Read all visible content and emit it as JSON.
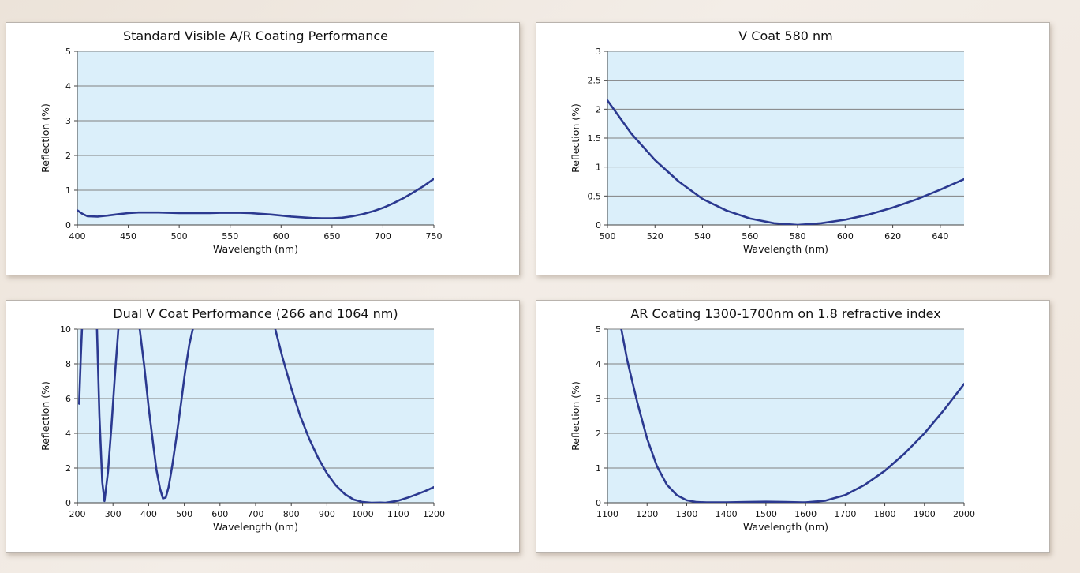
{
  "chart_data": [
    {
      "type": "line",
      "title": "Standard Visible A/R Coating Performance",
      "xlabel": "Wavelength (nm)",
      "ylabel": "Reflection (%)",
      "xlim": [
        400,
        750
      ],
      "ylim": [
        0,
        5
      ],
      "xticks": [
        "400",
        "450",
        "500",
        "550",
        "600",
        "650",
        "700",
        "750"
      ],
      "yticks": [
        "0",
        "1",
        "2",
        "3",
        "4",
        "5"
      ],
      "grid": true,
      "plot_color": "#dbeffa",
      "line_color": "#2b3990",
      "series": [
        {
          "x": [
            400,
            405,
            410,
            420,
            430,
            440,
            450,
            460,
            470,
            480,
            490,
            500,
            510,
            520,
            530,
            540,
            550,
            560,
            570,
            580,
            590,
            600,
            610,
            620,
            630,
            640,
            650,
            660,
            670,
            680,
            690,
            700,
            710,
            720,
            730,
            740,
            750
          ],
          "values": [
            0.42,
            0.32,
            0.25,
            0.24,
            0.27,
            0.31,
            0.34,
            0.36,
            0.36,
            0.36,
            0.35,
            0.34,
            0.34,
            0.34,
            0.34,
            0.35,
            0.35,
            0.35,
            0.34,
            0.32,
            0.3,
            0.27,
            0.24,
            0.22,
            0.2,
            0.19,
            0.19,
            0.21,
            0.25,
            0.31,
            0.39,
            0.49,
            0.62,
            0.77,
            0.94,
            1.12,
            1.33
          ]
        }
      ]
    },
    {
      "type": "line",
      "title": "V Coat 580 nm",
      "xlabel": "Wavelength (nm)",
      "ylabel": "Reflection (%)",
      "xlim": [
        500,
        650
      ],
      "ylim": [
        0,
        3
      ],
      "xticks": [
        "500",
        "520",
        "540",
        "560",
        "580",
        "600",
        "620",
        "640"
      ],
      "yticks": [
        "0",
        "0.5",
        "1",
        "1.5",
        "2",
        "2.5",
        "3"
      ],
      "grid": true,
      "plot_color": "#dbeffa",
      "line_color": "#2b3990",
      "series": [
        {
          "x": [
            500,
            510,
            520,
            530,
            540,
            550,
            560,
            570,
            580,
            590,
            600,
            610,
            620,
            630,
            640,
            650
          ],
          "values": [
            2.15,
            1.58,
            1.12,
            0.75,
            0.45,
            0.25,
            0.11,
            0.03,
            0.0,
            0.03,
            0.09,
            0.18,
            0.3,
            0.44,
            0.61,
            0.79
          ]
        }
      ]
    },
    {
      "type": "line",
      "title": "Dual V Coat Performance (266 and 1064 nm)",
      "xlabel": "Wavelength (nm)",
      "ylabel": "Reflection (%)",
      "xlim": [
        200,
        1200
      ],
      "ylim": [
        0,
        10
      ],
      "xticks": [
        "200",
        "300",
        "400",
        "500",
        "600",
        "700",
        "800",
        "900",
        "1000",
        "1100",
        "1200"
      ],
      "yticks": [
        "0",
        "2",
        "4",
        "6",
        "8",
        "10"
      ],
      "grid": true,
      "plot_color": "#dbeffa",
      "line_color": "#2b3990",
      "series": [
        {
          "x": [
            205,
            210,
            213
          ],
          "values": [
            5.7,
            8.5,
            10
          ]
        },
        {
          "x": [
            255,
            262,
            270,
            276,
            286,
            296,
            306,
            315
          ],
          "values": [
            10,
            5,
            1.2,
            0.1,
            1.8,
            4.5,
            7.5,
            10
          ]
        },
        {
          "x": [
            375,
            388,
            400,
            412,
            422,
            432,
            440,
            448,
            456,
            466,
            478,
            490,
            502,
            514,
            524
          ],
          "values": [
            10,
            7.8,
            5.5,
            3.5,
            1.9,
            0.8,
            0.25,
            0.3,
            0.9,
            2.1,
            3.8,
            5.6,
            7.5,
            9.1,
            10
          ]
        },
        {
          "x": [
            755,
            775,
            800,
            825,
            850,
            875,
            900,
            925,
            950,
            975,
            1000,
            1025,
            1050,
            1064,
            1075,
            1100,
            1125,
            1150,
            1175,
            1200
          ],
          "values": [
            10,
            8.4,
            6.6,
            5.0,
            3.7,
            2.6,
            1.7,
            1.0,
            0.5,
            0.18,
            0.04,
            0.0,
            0.01,
            0.0,
            0.03,
            0.12,
            0.28,
            0.47,
            0.67,
            0.9
          ]
        }
      ]
    },
    {
      "type": "line",
      "title": "AR Coating 1300-1700nm on 1.8 refractive index",
      "xlabel": "Wavelength (nm)",
      "ylabel": "Reflection (%)",
      "xlim": [
        1100,
        2000
      ],
      "ylim": [
        0,
        5
      ],
      "xticks": [
        "1100",
        "1200",
        "1300",
        "1400",
        "1500",
        "1600",
        "1700",
        "1800",
        "1900",
        "2000"
      ],
      "yticks": [
        "0",
        "1",
        "2",
        "3",
        "4",
        "5"
      ],
      "grid": true,
      "plot_color": "#dbeffa",
      "line_color": "#2b3990",
      "series": [
        {
          "x": [
            1135,
            1150,
            1175,
            1200,
            1225,
            1250,
            1275,
            1300,
            1325,
            1350,
            1400,
            1450,
            1500,
            1550,
            1600,
            1650,
            1700,
            1750,
            1800,
            1850,
            1900,
            1950,
            2000
          ],
          "values": [
            5.0,
            4.1,
            2.9,
            1.85,
            1.05,
            0.52,
            0.22,
            0.07,
            0.02,
            0.01,
            0.01,
            0.02,
            0.03,
            0.02,
            0.01,
            0.06,
            0.22,
            0.52,
            0.92,
            1.42,
            2.0,
            2.68,
            3.42
          ]
        }
      ]
    }
  ]
}
